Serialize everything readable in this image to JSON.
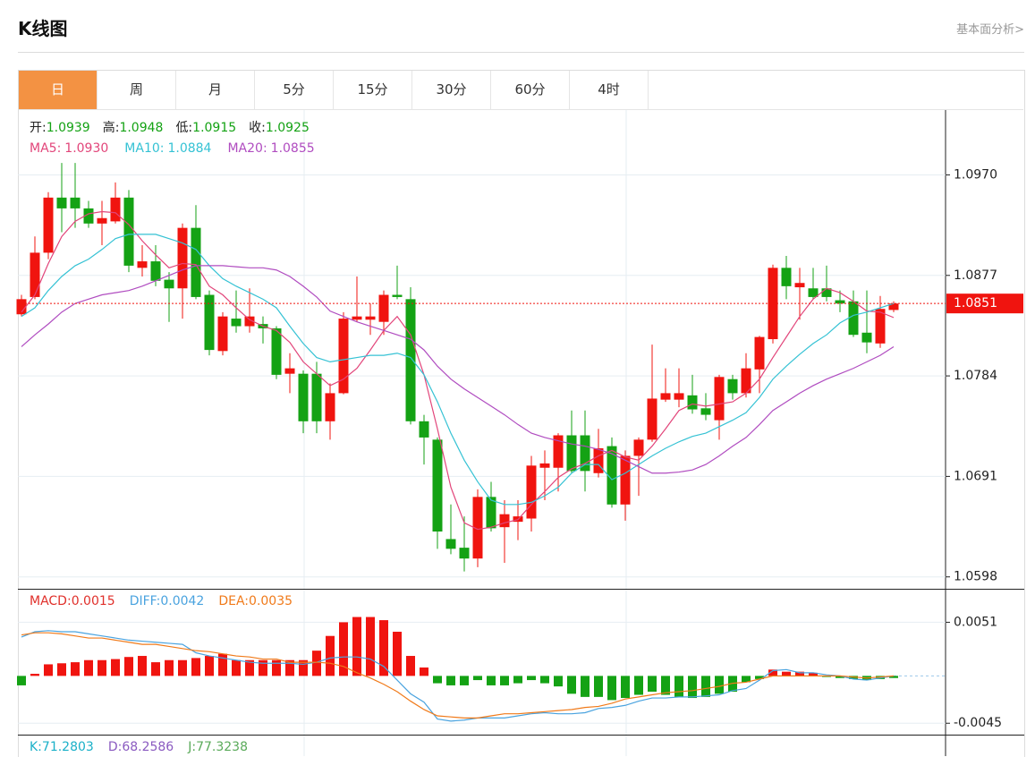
{
  "header": {
    "title": "K线图",
    "link": "基本面分析>"
  },
  "tabs": [
    "日",
    "周",
    "月",
    "5分",
    "15分",
    "30分",
    "60分",
    "4时"
  ],
  "active_tab": 0,
  "chart_data": [
    {
      "type": "candlestick",
      "info": [
        {
          "label": "开:",
          "value": "1.0939"
        },
        {
          "label": "高:",
          "value": "1.0948"
        },
        {
          "label": "低:",
          "value": "1.0915"
        },
        {
          "label": "收:",
          "value": "1.0925"
        }
      ],
      "info_label_color": "#222222",
      "info_value_color": "#14a214",
      "up_color": "#f0140f",
      "down_color": "#14a214",
      "open": [
        1.0841,
        1.0857,
        1.0898,
        1.0949,
        1.0949,
        1.0939,
        1.0925,
        1.0927,
        1.0949,
        1.0884,
        1.089,
        1.0873,
        1.0865,
        1.0921,
        1.0859,
        1.0807,
        1.0837,
        1.083,
        1.0832,
        1.0828,
        1.0786,
        1.0786,
        1.0786,
        1.0742,
        1.0768,
        1.0836,
        1.0836,
        1.0834,
        1.0859,
        1.0855,
        1.0742,
        1.0725,
        1.0633,
        1.0625,
        1.0615,
        1.0672,
        1.0644,
        1.0649,
        1.0652,
        1.0699,
        1.0699,
        1.0729,
        1.0729,
        1.0694,
        1.0719,
        1.0665,
        1.071,
        1.0725,
        1.0762,
        1.0762,
        1.0766,
        1.0754,
        1.0743,
        1.0781,
        1.0768,
        1.079,
        1.0818,
        1.0884,
        1.0866,
        1.0865,
        1.0865,
        1.0854,
        1.0853,
        1.0824,
        1.0814,
        1.0845
      ],
      "high": [
        1.0859,
        1.0913,
        1.0954,
        1.0981,
        1.0981,
        1.0946,
        1.0946,
        1.0963,
        1.0956,
        1.0905,
        1.0905,
        1.088,
        1.0925,
        1.0942,
        1.0863,
        1.0843,
        1.0863,
        1.0865,
        1.0839,
        1.083,
        1.0805,
        1.0789,
        1.0797,
        1.0777,
        1.0843,
        1.0876,
        1.0851,
        1.0863,
        1.0886,
        1.0866,
        1.0748,
        1.0727,
        1.0665,
        1.0654,
        1.0679,
        1.0686,
        1.0669,
        1.0669,
        1.071,
        1.0715,
        1.0731,
        1.0752,
        1.0752,
        1.0735,
        1.0727,
        1.0715,
        1.0727,
        1.0813,
        1.0791,
        1.0791,
        1.0785,
        1.0768,
        1.0785,
        1.0785,
        1.0805,
        1.0821,
        1.0887,
        1.0895,
        1.0884,
        1.0884,
        1.0886,
        1.0863,
        1.0863,
        1.0863,
        1.0858,
        1.0853
      ],
      "low": [
        1.0839,
        1.0855,
        1.0892,
        1.0917,
        1.0921,
        1.0921,
        1.0905,
        1.0925,
        1.088,
        1.0876,
        1.0867,
        1.0834,
        1.0837,
        1.0855,
        1.0803,
        1.0803,
        1.0824,
        1.0824,
        1.0814,
        1.0781,
        1.0768,
        1.0731,
        1.0731,
        1.0725,
        1.0767,
        1.0834,
        1.0822,
        1.0822,
        1.0855,
        1.0739,
        1.0702,
        1.0624,
        1.0619,
        1.0603,
        1.0607,
        1.064,
        1.0611,
        1.0632,
        1.064,
        1.0669,
        1.0677,
        1.0694,
        1.0677,
        1.069,
        1.0662,
        1.065,
        1.0673,
        1.0723,
        1.076,
        1.0755,
        1.0749,
        1.0743,
        1.0725,
        1.0762,
        1.0764,
        1.0768,
        1.0814,
        1.0855,
        1.0836,
        1.0855,
        1.0853,
        1.0843,
        1.082,
        1.0805,
        1.081,
        1.0843
      ],
      "close": [
        1.0855,
        1.0898,
        1.0949,
        1.0939,
        1.0939,
        1.0925,
        1.093,
        1.0949,
        1.0886,
        1.089,
        1.0872,
        1.0865,
        1.0921,
        1.0857,
        1.0808,
        1.0839,
        1.083,
        1.0839,
        1.0828,
        1.0785,
        1.0791,
        1.0742,
        1.0742,
        1.0768,
        1.0837,
        1.0839,
        1.0839,
        1.0859,
        1.0857,
        1.0742,
        1.0727,
        1.064,
        1.0624,
        1.0615,
        1.0672,
        1.0643,
        1.0656,
        1.0654,
        1.0701,
        1.0703,
        1.0729,
        1.0696,
        1.0696,
        1.0717,
        1.0665,
        1.071,
        1.0725,
        1.0763,
        1.0768,
        1.0768,
        1.0753,
        1.0748,
        1.0783,
        1.0768,
        1.0791,
        1.082,
        1.0884,
        1.0867,
        1.087,
        1.0857,
        1.0857,
        1.0851,
        1.0822,
        1.0815,
        1.0846,
        1.0851
      ],
      "series": [
        {
          "name": "MA5:",
          "legend_value": "1.0930",
          "color": "#e2457a",
          "values": [
            1.0843,
            1.0859,
            1.0888,
            1.0913,
            1.0927,
            1.0934,
            1.0936,
            1.0935,
            1.0924,
            1.0909,
            1.0896,
            1.0884,
            1.0888,
            1.0887,
            1.0867,
            1.0859,
            1.0847,
            1.0836,
            1.083,
            1.0826,
            1.0815,
            1.0797,
            1.0786,
            1.0775,
            1.0781,
            1.0791,
            1.0808,
            1.0826,
            1.0839,
            1.0822,
            1.0785,
            1.0735,
            1.0681,
            1.0648,
            1.0642,
            1.0644,
            1.0648,
            1.0651,
            1.0665,
            1.0677,
            1.069,
            1.0698,
            1.0703,
            1.071,
            1.0715,
            1.0709,
            1.0706,
            1.0719,
            1.0735,
            1.0752,
            1.0758,
            1.0756,
            1.0758,
            1.076,
            1.0768,
            1.0781,
            1.0801,
            1.082,
            1.0839,
            1.0855,
            1.0865,
            1.0861,
            1.0853,
            1.0844,
            1.0843,
            1.0838
          ]
        },
        {
          "name": "MA10:",
          "legend_value": "1.0884",
          "color": "#35c2d4",
          "values": [
            1.0839,
            1.0847,
            1.0863,
            1.0876,
            1.0886,
            1.0892,
            1.0901,
            1.0911,
            1.0915,
            1.0915,
            1.0915,
            1.0911,
            1.0907,
            1.0901,
            1.0886,
            1.0874,
            1.0867,
            1.0861,
            1.0855,
            1.0847,
            1.083,
            1.0814,
            1.0801,
            1.0797,
            1.0799,
            1.0801,
            1.0803,
            1.0803,
            1.0805,
            1.0801,
            1.0785,
            1.076,
            1.0731,
            1.0706,
            1.0686,
            1.0669,
            1.0665,
            1.0665,
            1.0667,
            1.0673,
            1.0681,
            1.0694,
            1.0702,
            1.0702,
            1.0688,
            1.0694,
            1.0702,
            1.071,
            1.0717,
            1.0723,
            1.0728,
            1.0731,
            1.0737,
            1.0743,
            1.075,
            1.0764,
            1.0781,
            1.0793,
            1.0804,
            1.0814,
            1.0822,
            1.0833,
            1.084,
            1.0843,
            1.0847,
            1.0851
          ]
        },
        {
          "name": "MA20:",
          "legend_value": "1.0855",
          "color": "#b04cc0",
          "values": [
            1.0811,
            1.0822,
            1.0832,
            1.0843,
            1.0851,
            1.0855,
            1.0859,
            1.0861,
            1.0863,
            1.0867,
            1.0872,
            1.0877,
            1.0882,
            1.0886,
            1.0886,
            1.0886,
            1.0885,
            1.0884,
            1.0884,
            1.0882,
            1.0876,
            1.0867,
            1.0857,
            1.0844,
            1.0839,
            1.0834,
            1.083,
            1.0826,
            1.0822,
            1.0818,
            1.0808,
            1.0793,
            1.0781,
            1.0772,
            1.0764,
            1.0756,
            1.0748,
            1.0739,
            1.0731,
            1.0727,
            1.0724,
            1.0721,
            1.0719,
            1.0716,
            1.0712,
            1.0706,
            1.07,
            1.0694,
            1.0694,
            1.0695,
            1.0697,
            1.0702,
            1.071,
            1.0719,
            1.0727,
            1.0739,
            1.0752,
            1.076,
            1.0768,
            1.0775,
            1.0781,
            1.0786,
            1.0791,
            1.0797,
            1.0803,
            1.0811
          ]
        }
      ],
      "last_price": 1.0851,
      "last_price_color": "#f0140f",
      "ylim": [
        1.0587,
        1.103
      ],
      "yticks": [
        {
          "value": 1.097,
          "label": "1.0970"
        },
        1.0877,
        1.0784,
        1.0691,
        1.0598
      ],
      "grid": true
    },
    {
      "type": "macd",
      "up_color": "#f0140f",
      "down_color": "#14a214",
      "series": [
        {
          "name": "MACD:",
          "legend_value": "0.0015",
          "color": "#e0302b",
          "type": "bar",
          "values": [
            -0.0009,
            0.0002,
            0.0011,
            0.0012,
            0.0013,
            0.0015,
            0.0015,
            0.0016,
            0.0018,
            0.0019,
            0.0013,
            0.0015,
            0.0015,
            0.0017,
            0.0019,
            0.0021,
            0.0015,
            0.0015,
            0.0015,
            0.0015,
            0.0015,
            0.0015,
            0.0024,
            0.0038,
            0.0051,
            0.0056,
            0.0056,
            0.0053,
            0.0042,
            0.0019,
            0.0008,
            -0.0007,
            -0.0009,
            -0.0009,
            -0.0004,
            -0.0009,
            -0.0009,
            -0.0007,
            -0.0004,
            -0.0007,
            -0.001,
            -0.0017,
            -0.002,
            -0.002,
            -0.0023,
            -0.0021,
            -0.0018,
            -0.0015,
            -0.0018,
            -0.002,
            -0.0021,
            -0.002,
            -0.0017,
            -0.0015,
            -0.0006,
            -0.0003,
            0.0006,
            0.0004,
            0.0004,
            0.0003,
            -0.0001,
            -0.0002,
            -0.0003,
            -0.0004,
            -0.0003,
            -0.0002
          ]
        },
        {
          "name": "DIFF:",
          "legend_value": "0.0042",
          "color": "#4aa3df",
          "type": "line",
          "values": [
            0.0037,
            0.0042,
            0.0043,
            0.0042,
            0.0042,
            0.004,
            0.0038,
            0.0036,
            0.0034,
            0.0033,
            0.0032,
            0.0031,
            0.003,
            0.0022,
            0.0019,
            0.0017,
            0.0015,
            0.0013,
            0.0012,
            0.0012,
            0.0012,
            0.0011,
            0.0013,
            0.0017,
            0.0018,
            0.0018,
            0.0016,
            0.0009,
            -0.0004,
            -0.0017,
            -0.0025,
            -0.0041,
            -0.0043,
            -0.0042,
            -0.004,
            -0.004,
            -0.004,
            -0.0038,
            -0.0036,
            -0.0035,
            -0.0036,
            -0.0036,
            -0.0035,
            -0.0031,
            -0.003,
            -0.0028,
            -0.0024,
            -0.0021,
            -0.0021,
            -0.002,
            -0.002,
            -0.0019,
            -0.0018,
            -0.0014,
            -0.0012,
            -0.0004,
            0.0005,
            0.0006,
            0.0003,
            0.0003,
            0.0001,
            0,
            -0.0003,
            -0.0004,
            -0.0002,
            0
          ]
        },
        {
          "name": "DEA:",
          "legend_value": "0.0035",
          "color": "#f07a1a",
          "type": "line",
          "values": [
            0.0039,
            0.0041,
            0.0041,
            0.004,
            0.0038,
            0.0036,
            0.0036,
            0.0034,
            0.0032,
            0.003,
            0.003,
            0.0028,
            0.0026,
            0.0024,
            0.0023,
            0.0021,
            0.0019,
            0.0018,
            0.0016,
            0.0016,
            0.0013,
            0.0013,
            0.0013,
            0.0012,
            0.0009,
            0.0003,
            -0.0002,
            -0.0008,
            -0.0015,
            -0.0024,
            -0.0032,
            -0.0038,
            -0.0039,
            -0.004,
            -0.004,
            -0.0038,
            -0.0036,
            -0.0036,
            -0.0035,
            -0.0034,
            -0.0033,
            -0.0032,
            -0.003,
            -0.0029,
            -0.0026,
            -0.0022,
            -0.002,
            -0.0018,
            -0.0016,
            -0.0015,
            -0.0014,
            -0.0012,
            -0.001,
            -0.0007,
            -0.0006,
            -0.0003,
            0,
            0,
            0,
            0,
            0,
            0,
            -0.0001,
            -0.0002,
            -0.0001,
            0
          ]
        }
      ],
      "ylim": [
        -0.0055,
        0.0082
      ],
      "yticks": [
        0.0051,
        -0.0045
      ],
      "grid": true
    }
  ],
  "kdj": [
    {
      "label": "K:",
      "value": "71.2803",
      "color": "#1ab0c8"
    },
    {
      "label": "D:",
      "value": "68.2586",
      "color": "#8a5ac0"
    },
    {
      "label": "J:",
      "value": "77.3238",
      "color": "#5aaa5a"
    }
  ]
}
